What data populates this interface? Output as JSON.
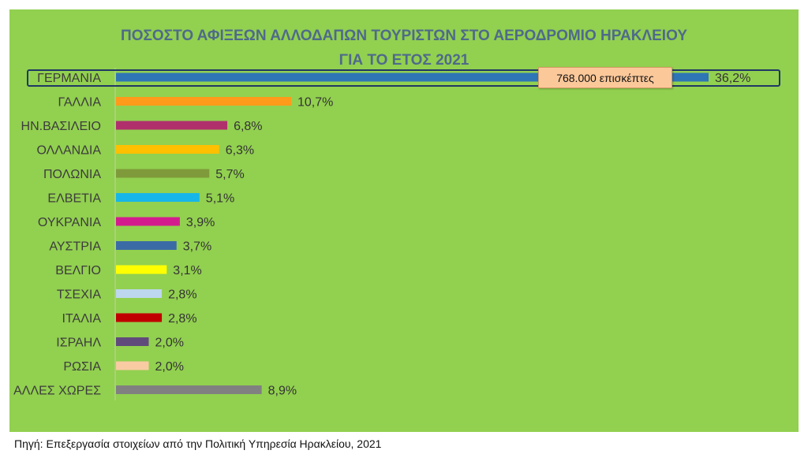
{
  "chart_data": {
    "type": "bar",
    "orientation": "horizontal",
    "title_line1": "ΠΟΣΟΣΤΟ ΑΦΙΞΕΩΝ ΑΛΛΟΔΑΠΩΝ ΤΟΥΡΙΣΤΩΝ  ΣΤΟ ΑΕΡΟΔΡΟΜΙΟ ΗΡΑΚΛΕΙΟΥ",
    "title_line2": "ΓΙΑ ΤΟ ΕΤΟΣ 2021",
    "categories": [
      "ΓΕΡΜΑΝΙΑ",
      "ΓΑΛΛΙΑ",
      "ΗΝ.ΒΑΣΙΛΕΙΟ",
      "ΟΛΛΑΝΔΙΑ",
      "ΠΟΛΩΝΙΑ",
      "ΕΛΒΕΤΙΑ",
      "ΟΥΚΡΑΝΙΑ",
      "ΑΥΣΤΡΙΑ",
      "ΒΕΛΓΙΟ",
      "ΤΣΕΧΙΑ",
      "ΙΤΑΛΙΑ",
      "ΙΣΡΑΗΛ",
      "ΡΩΣΙΑ",
      "ΑΛΛΕΣ ΧΩΡΕΣ"
    ],
    "values": [
      36.2,
      10.7,
      6.8,
      6.3,
      5.7,
      5.1,
      3.9,
      3.7,
      3.1,
      2.8,
      2.8,
      2.0,
      2.0,
      8.9
    ],
    "value_labels": [
      "36,2%",
      "10,7%",
      "6,8%",
      "6,3%",
      "5,7%",
      "5,1%",
      "3,9%",
      "3,7%",
      "3,1%",
      "2,8%",
      "2,8%",
      "2,0%",
      "2,0%",
      "8,9%"
    ],
    "colors": [
      "#2e75b6",
      "#ff9a1a",
      "#b0306c",
      "#ffc000",
      "#7f9a3a",
      "#17b6e8",
      "#d41b8e",
      "#3b6ba5",
      "#ffff00",
      "#bdd7ee",
      "#c00000",
      "#604a7b",
      "#f8cba2",
      "#808080"
    ],
    "xlim": [
      0,
      36.2
    ],
    "grid": false,
    "legend": false,
    "highlight": {
      "category": "ΓΕΡΜΑΝΙΑ",
      "annotation": "768.000 επισκέπτες"
    }
  },
  "source": "Πηγή: Επεξεργασία στοιχείων από την Πολιτική Υπηρεσία Ηρακλείου, 2021"
}
